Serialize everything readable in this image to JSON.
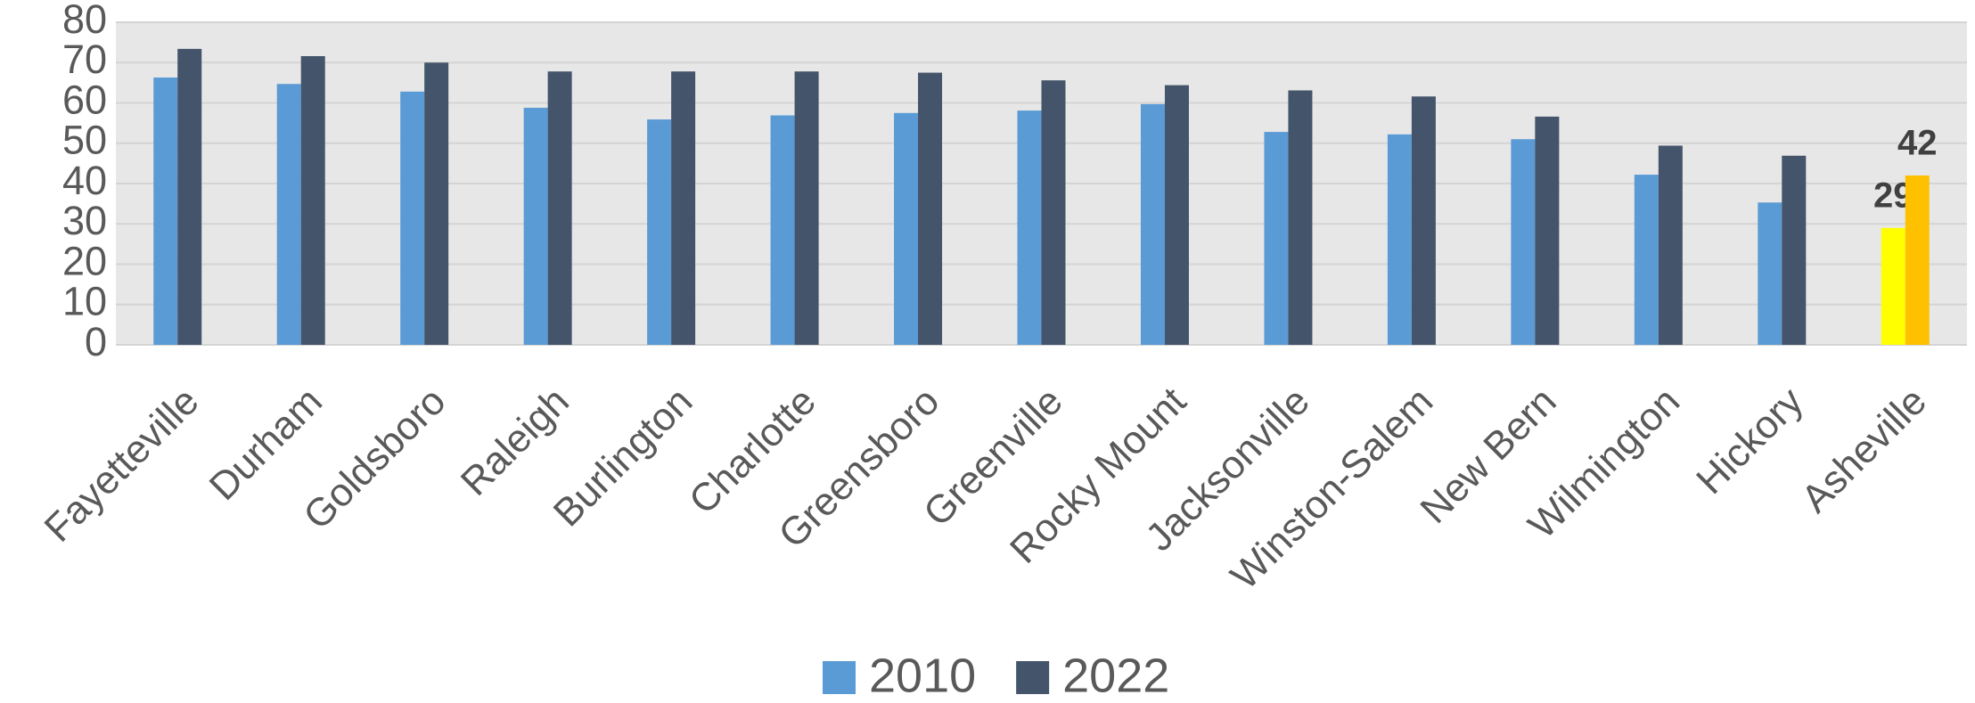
{
  "chart_data": {
    "type": "bar",
    "categories": [
      "Fayetteville",
      "Durham",
      "Goldsboro",
      "Raleigh",
      "Burlington",
      "Charlotte",
      "Greensboro",
      "Greenville",
      "Rocky Mount",
      "Jacksonville",
      "Winston-Salem",
      "New Bern",
      "Wilmington",
      "Hickory",
      "Asheville"
    ],
    "series": [
      {
        "name": "2010",
        "color": "#5b9bd5",
        "colors": [
          "#5b9bd5",
          "#5b9bd5",
          "#5b9bd5",
          "#5b9bd5",
          "#5b9bd5",
          "#5b9bd5",
          "#5b9bd5",
          "#5b9bd5",
          "#5b9bd5",
          "#5b9bd5",
          "#5b9bd5",
          "#5b9bd5",
          "#5b9bd5",
          "#5b9bd5",
          "#ffff00"
        ],
        "values": [
          66.3,
          64.7,
          62.8,
          58.8,
          55.9,
          56.9,
          57.5,
          58.1,
          59.7,
          52.8,
          52.2,
          51,
          42.2,
          35.3,
          29
        ],
        "value_labels": [
          null,
          null,
          null,
          null,
          null,
          null,
          null,
          null,
          null,
          null,
          null,
          null,
          null,
          null,
          "29"
        ]
      },
      {
        "name": "2022",
        "color": "#44546a",
        "colors": [
          "#44546a",
          "#44546a",
          "#44546a",
          "#44546a",
          "#44546a",
          "#44546a",
          "#44546a",
          "#44546a",
          "#44546a",
          "#44546a",
          "#44546a",
          "#44546a",
          "#44546a",
          "#44546a",
          "#ffc000"
        ],
        "values": [
          73.4,
          71.6,
          70,
          67.8,
          67.8,
          67.8,
          67.5,
          65.6,
          64.4,
          63.1,
          61.6,
          56.6,
          49.4,
          46.9,
          42
        ],
        "value_labels": [
          null,
          null,
          null,
          null,
          null,
          null,
          null,
          null,
          null,
          null,
          null,
          null,
          null,
          null,
          "42"
        ]
      }
    ],
    "ylim": [
      0,
      80
    ],
    "yticks": [
      0,
      10,
      20,
      30,
      40,
      50,
      60,
      70,
      80
    ],
    "grid": true,
    "legend": "bottom"
  }
}
